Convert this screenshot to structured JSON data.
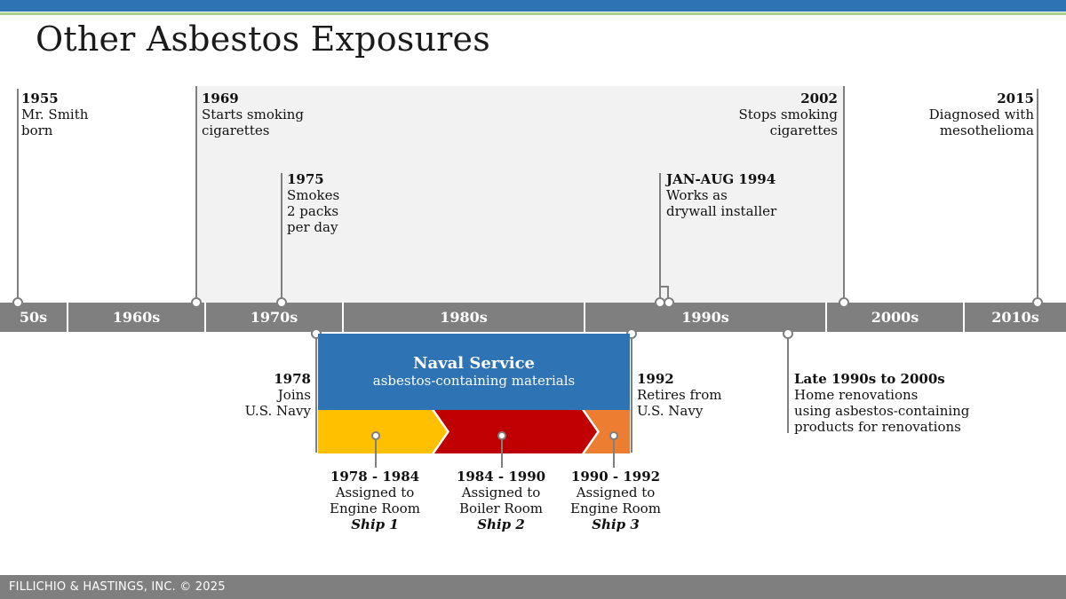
{
  "title": "Other Asbestos Exposures",
  "decades": [
    "50s",
    "1960s",
    "1970s",
    "1980s",
    "1990s",
    "2000s",
    "2010s"
  ],
  "events_above": {
    "e1955": {
      "year": "1955",
      "lines": [
        "Mr. Smith",
        "born"
      ]
    },
    "e1969": {
      "year": "1969",
      "lines": [
        "Starts smoking",
        "cigarettes"
      ]
    },
    "e1975": {
      "year": "1975",
      "lines": [
        "Smokes",
        "2 packs",
        "per day"
      ]
    },
    "e1994": {
      "year": "JAN-AUG 1994",
      "lines": [
        "Works as",
        "drywall installer"
      ]
    },
    "e2002": {
      "year": "2002",
      "lines": [
        "Stops smoking",
        "cigarettes"
      ]
    },
    "e2015": {
      "year": "2015",
      "lines": [
        "Diagnosed with",
        "mesothelioma"
      ]
    }
  },
  "events_below": {
    "e1978": {
      "year": "1978",
      "lines": [
        "Joins",
        "U.S. Navy"
      ]
    },
    "e1992": {
      "year": "1992",
      "lines": [
        "Retires from",
        "U.S. Navy"
      ]
    },
    "late90s": {
      "year": "Late 1990s to 2000s",
      "lines": [
        "Home renovations",
        "using asbestos-containing",
        "products for renovations"
      ]
    }
  },
  "naval": {
    "title": "Naval Service",
    "subtitle": "asbestos-containing materials"
  },
  "ships": [
    {
      "years": "1978 - 1984",
      "line1": "Assigned to",
      "line2": "Engine Room",
      "ship": "Ship 1",
      "color": "#ffc000"
    },
    {
      "years": "1984 - 1990",
      "line1": "Assigned to",
      "line2": "Boiler Room",
      "ship": "Ship 2",
      "color": "#c00000"
    },
    {
      "years": "1990 - 1992",
      "line1": "Assigned to",
      "line2": "Engine Room",
      "ship": "Ship 3",
      "color": "#ed7d31"
    }
  ],
  "colors": {
    "primary": "#2e74b5",
    "accent": "#a9d18e",
    "axis": "#7f7f7f",
    "smoking_band": "#f2f2f2"
  },
  "footer": "FILLICHIO & HASTINGS, INC. © 2025"
}
